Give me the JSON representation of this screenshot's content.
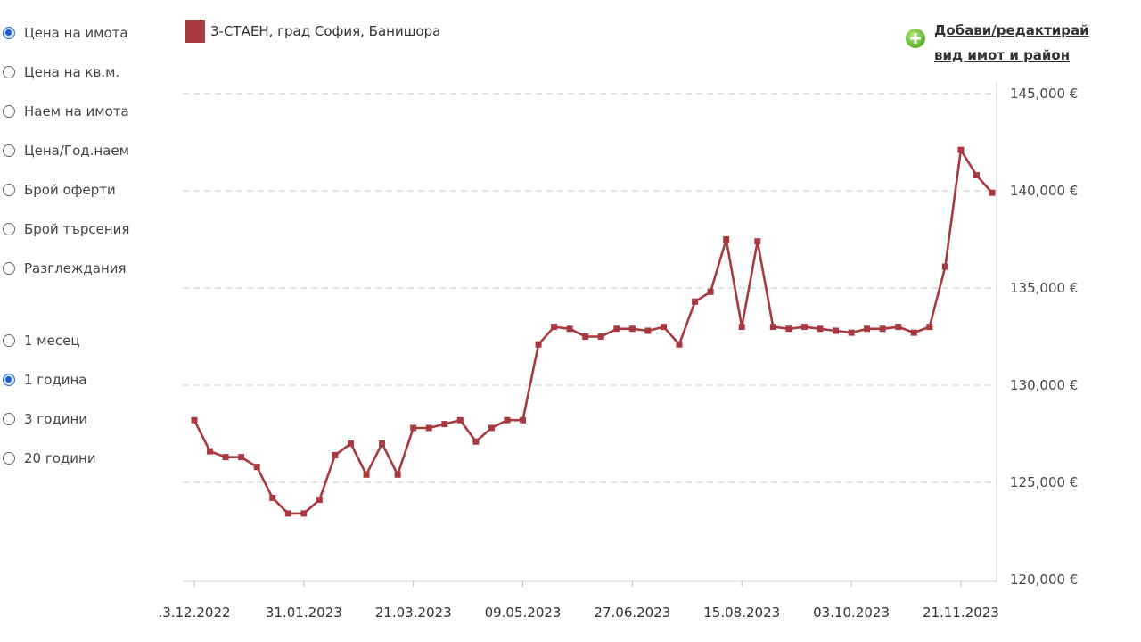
{
  "metric_options": [
    {
      "label": "Цена на имота",
      "checked": true
    },
    {
      "label": "Цена на кв.м.",
      "checked": false
    },
    {
      "label": "Наем на имота",
      "checked": false
    },
    {
      "label": "Цена/Год.наем",
      "checked": false
    },
    {
      "label": "Брой оферти",
      "checked": false
    },
    {
      "label": "Брой търсения",
      "checked": false
    },
    {
      "label": "Разглеждания",
      "checked": false
    }
  ],
  "period_options": [
    {
      "label": "1 месец",
      "checked": false
    },
    {
      "label": "1 година",
      "checked": true
    },
    {
      "label": "3 години",
      "checked": false
    },
    {
      "label": "20 години",
      "checked": false
    }
  ],
  "edit_link": {
    "line1": "Добави/редактирай",
    "line2": "вид имот и район"
  },
  "colors": {
    "series": "#a83a3f",
    "accent": "#2a6fd6",
    "link_icon": "#58b22a"
  },
  "chart_data": {
    "type": "line",
    "ylim": [
      120000,
      145000
    ],
    "y_ticks": [
      {
        "value": 120000,
        "label": "120,000 €"
      },
      {
        "value": 125000,
        "label": "125,000 €"
      },
      {
        "value": 130000,
        "label": "130,000 €"
      },
      {
        "value": 135000,
        "label": "135,000 €"
      },
      {
        "value": 140000,
        "label": "140,000 €"
      },
      {
        "value": 145000,
        "label": "145,000 €"
      }
    ],
    "x_tick_labels": [
      ".3.12.2022",
      "31.01.2023",
      "21.03.2023",
      "09.05.2023",
      "27.06.2023",
      "15.08.2023",
      "03.10.2023",
      "21.11.2023"
    ],
    "x_tick_positions": [
      0,
      7,
      14,
      21,
      28,
      35,
      42,
      49
    ],
    "grid": true,
    "legend_position": "top-left",
    "series": [
      {
        "name": "3-СТАЕН, град София, Банишора",
        "values": [
          128200,
          126600,
          126300,
          126300,
          125800,
          124200,
          123400,
          123400,
          124100,
          126400,
          127000,
          125400,
          127000,
          125400,
          127800,
          127800,
          128000,
          128200,
          127100,
          127800,
          128200,
          128200,
          132100,
          133000,
          132900,
          132500,
          132500,
          132900,
          132900,
          132800,
          133000,
          132100,
          134300,
          134800,
          137500,
          133000,
          137400,
          133000,
          132900,
          133000,
          132900,
          132800,
          132700,
          132900,
          132900,
          133000,
          132700,
          133000,
          136100,
          142100,
          140800,
          139900
        ]
      }
    ]
  }
}
